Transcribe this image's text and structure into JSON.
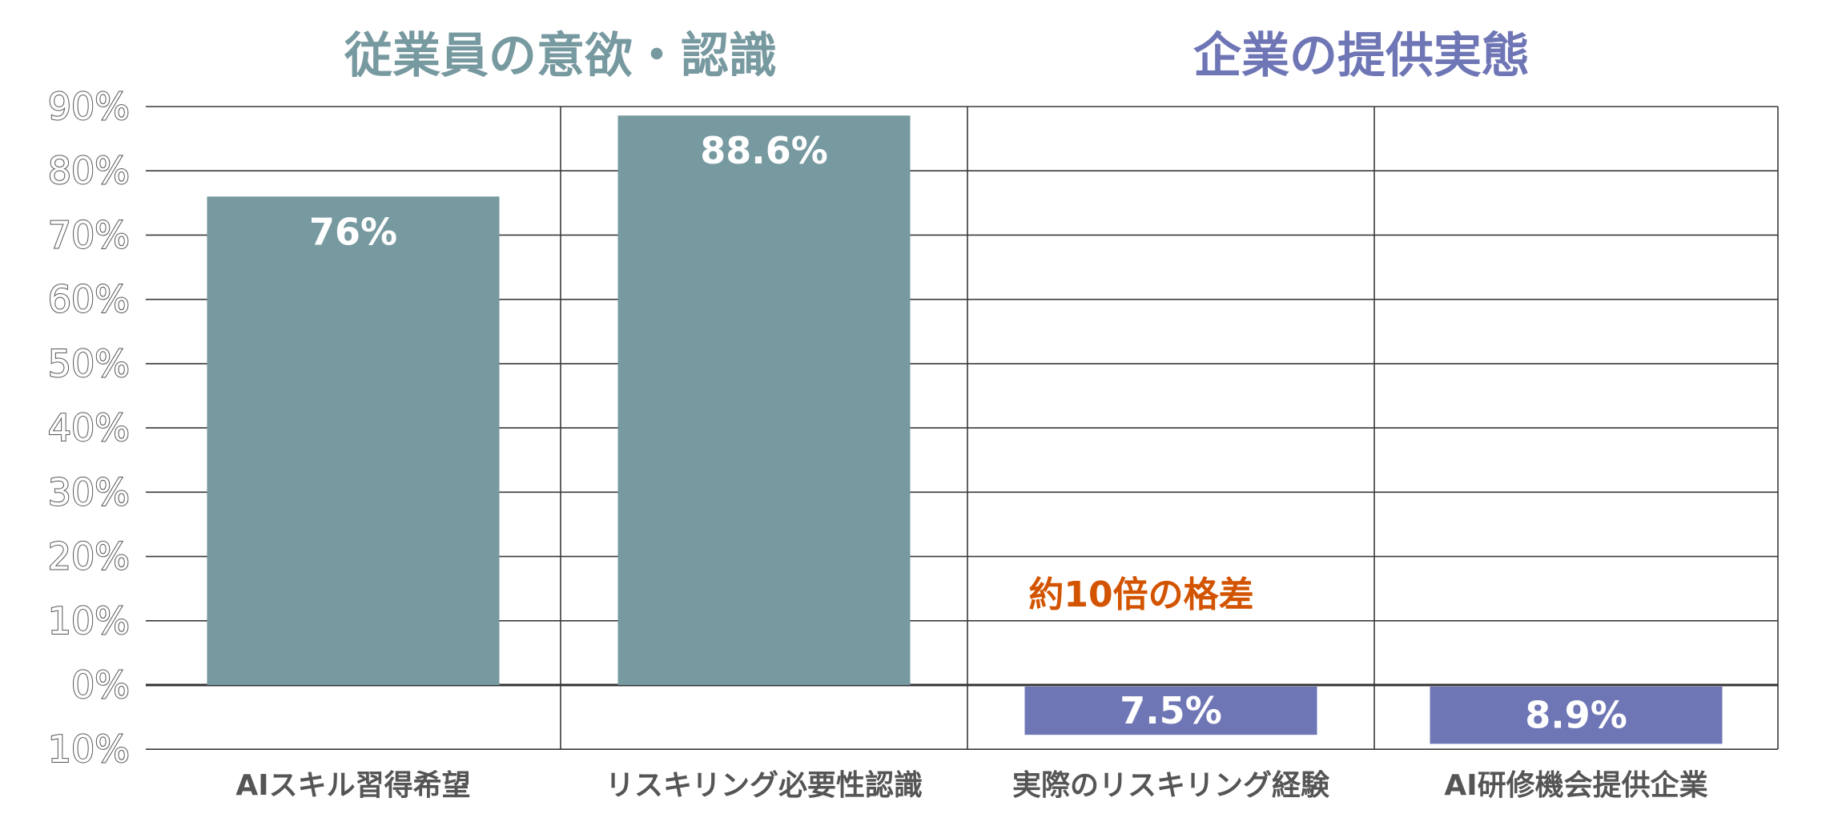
{
  "chart_data": {
    "type": "bar",
    "groups": [
      {
        "title": "従業員の意欲・認識",
        "color": "#7799a0",
        "categories": [
          "AIスキル習得希望",
          "リスキリング必要性認識"
        ]
      },
      {
        "title": "企業の提供実態",
        "color": "#6f76b5",
        "categories": [
          "実際のリスキリング経験",
          "AI研修機会提供企業"
        ]
      }
    ],
    "categories": [
      "AIスキル習得希望",
      "リスキリング必要性認識",
      "実際のリスキリング経験",
      "AI研修機会提供企業"
    ],
    "series": [
      {
        "values": [
          76,
          88.6,
          7.5,
          8.9
        ],
        "labels": [
          "76%",
          "88.6%",
          "7.5%",
          "8.9%"
        ],
        "colors": [
          "#7799a0",
          "#7799a0",
          "#6f76b5",
          "#6f76b5"
        ]
      }
    ],
    "bar_direction": [
      "up",
      "up",
      "down",
      "down"
    ],
    "yticks": [
      {
        "value": 90,
        "label": "90%"
      },
      {
        "value": 80,
        "label": "80%"
      },
      {
        "value": 70,
        "label": "70%"
      },
      {
        "value": 60,
        "label": "60%"
      },
      {
        "value": 50,
        "label": "50%"
      },
      {
        "value": 40,
        "label": "40%"
      },
      {
        "value": 30,
        "label": "30%"
      },
      {
        "value": 20,
        "label": "20%"
      },
      {
        "value": 10,
        "label": "10%"
      },
      {
        "value": 0,
        "label": "0%"
      },
      {
        "value": -10,
        "label": "10%"
      }
    ],
    "ylim": [
      -10,
      90
    ],
    "grid": true,
    "annotation": {
      "text": "約10倍の格差",
      "color": "#d35400",
      "value": 15
    }
  }
}
